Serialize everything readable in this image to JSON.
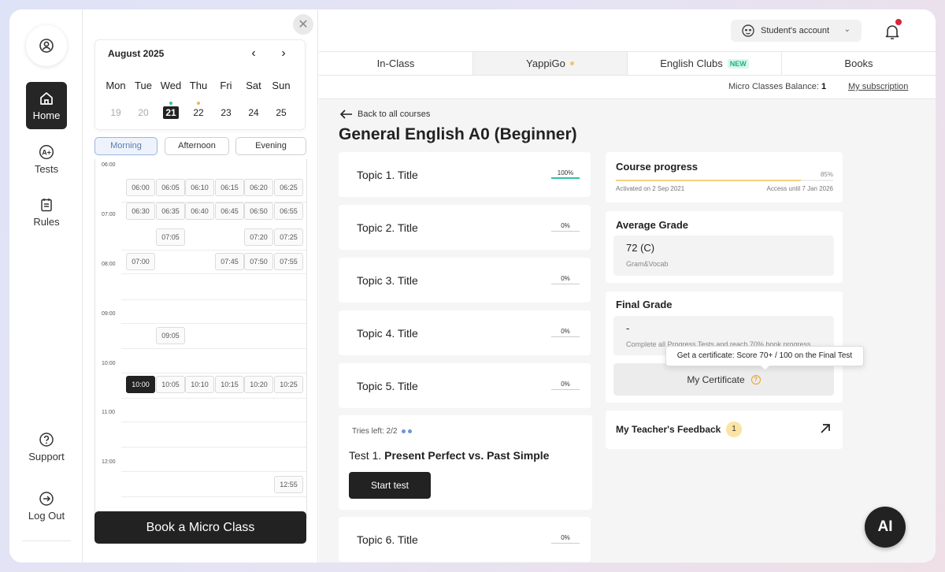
{
  "nav": {
    "items": [
      {
        "label": "Home",
        "icon": "home-icon"
      },
      {
        "label": "Tests",
        "icon": "grade-icon"
      },
      {
        "label": "Rules",
        "icon": "clipboard-icon"
      },
      {
        "label": "Support",
        "icon": "help-icon"
      },
      {
        "label": "Log Out",
        "icon": "logout-icon"
      }
    ]
  },
  "calendar": {
    "month": "August 2025",
    "weekdays": [
      "Mon",
      "Tue",
      "Wed",
      "Thu",
      "Fri",
      "Sat",
      "Sun"
    ],
    "days": [
      "19",
      "20",
      "21",
      "22",
      "23",
      "24",
      "25"
    ],
    "selected_day": "21",
    "periods": [
      "Morning",
      "Afternoon",
      "Evening"
    ],
    "hours": [
      "06:00",
      "07:00",
      "08:00",
      "09:00",
      "10:00",
      "11:00",
      "12:00"
    ],
    "slots": {
      "r1": [
        "06:00",
        "06:05",
        "06:10",
        "06:15",
        "06:20",
        "06:25"
      ],
      "r2": [
        "06:30",
        "06:35",
        "06:40",
        "06:45",
        "06:50",
        "06:55"
      ],
      "r3": [
        "07:05",
        "07:20",
        "07:25"
      ],
      "r4": [
        "07:00",
        "07:45",
        "07:50",
        "07:55"
      ],
      "r5": [
        "09:05"
      ],
      "r6": [
        "10:00",
        "10:05",
        "10:10",
        "10:15",
        "10:20",
        "10:25"
      ],
      "r7": [
        "12:55"
      ]
    },
    "selected_slot": "10:00",
    "book_label": "Book a Micro Class"
  },
  "header": {
    "account_label": "Student's account",
    "tabs": [
      {
        "label": "In-Class"
      },
      {
        "label": "YappiGo"
      },
      {
        "label": "English Clubs",
        "badge": "NEW"
      },
      {
        "label": "Books"
      }
    ],
    "active_tab": "YappiGo",
    "balance_label": "Micro Classes Balance:",
    "balance_value": "1",
    "subscription_link": "My subscription"
  },
  "course": {
    "back_label": "Back to all courses",
    "title": "General English A0 (Beginner)",
    "topics": [
      {
        "title": "Topic 1. Title",
        "percent_label": "100%",
        "progress": 1.0
      },
      {
        "title": "Topic 2. Title",
        "percent_label": "0%",
        "progress": 0
      },
      {
        "title": "Topic 3. Title",
        "percent_label": "0%",
        "progress": 0
      },
      {
        "title": "Topic 4. Title",
        "percent_label": "0%",
        "progress": 0
      },
      {
        "title": "Topic 5. Title",
        "percent_label": "0%",
        "progress": 0
      },
      {
        "title": "Topic 6. Title",
        "percent_label": "0%",
        "progress": 0
      }
    ],
    "test": {
      "tries": "Tries left: 2/2",
      "prefix": "Test 1.",
      "name": "Present Perfect vs. Past Simple",
      "button": "Start test"
    }
  },
  "side": {
    "progress": {
      "title": "Course progress",
      "percent_label": "85%",
      "value": 0.85,
      "activated": "Activated on 2 Sep 2021",
      "access": "Access until 7 Jan 2026"
    },
    "average": {
      "title": "Average Grade",
      "value": "72 (C)",
      "sub": "Gram&Vocab"
    },
    "final": {
      "title": "Final Grade",
      "value": "-",
      "sub": "Complete all Progress Tests and reach 70% book progress",
      "certificate_label": "My Certificate",
      "tooltip": "Get a certificate: Score 70+ / 100 on the Final Test"
    },
    "feedback": {
      "title": "My Teacher's Feedback",
      "count": "1"
    }
  },
  "ai_label": "AI",
  "colors": {
    "accent_dark": "#222222",
    "progress_green": "#2ec4a4",
    "progress_yellow": "#f3d07b",
    "notification_red": "#d7263d",
    "new_badge": "#16b38a"
  }
}
